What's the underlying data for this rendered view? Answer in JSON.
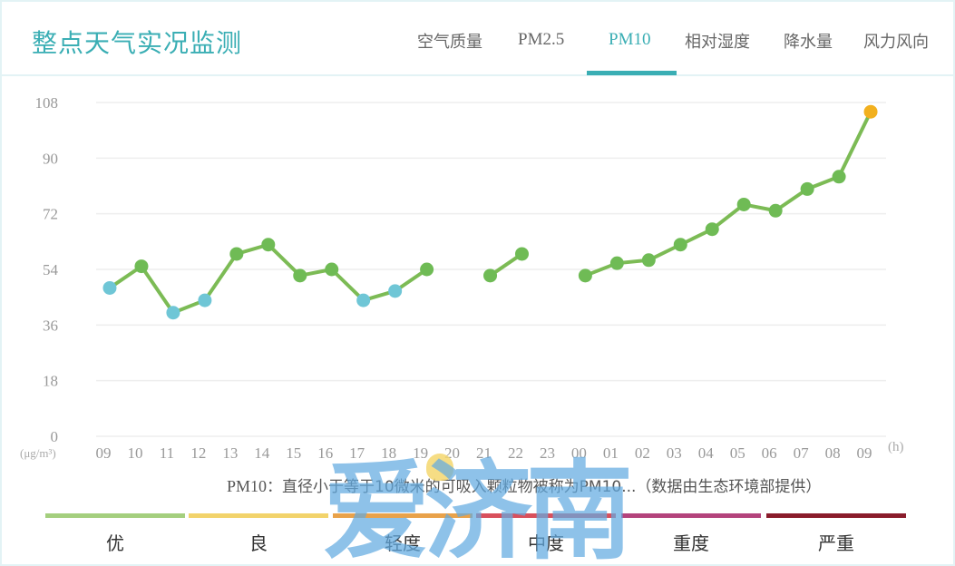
{
  "header": {
    "title": "整点天气实况监测",
    "tabs": [
      {
        "label": "空气质量",
        "active": false
      },
      {
        "label": "PM2.5",
        "active": false
      },
      {
        "label": "PM10",
        "active": true
      },
      {
        "label": "相对湿度",
        "active": false
      },
      {
        "label": "降水量",
        "active": false
      },
      {
        "label": "风力风向",
        "active": false
      }
    ]
  },
  "note": {
    "prefix": "PM10",
    "text": "：直径小于等于10微米的可吸入颗粒物被称为PM10...（数据由生态环境部提供）"
  },
  "levels": [
    {
      "label": "优",
      "color": "#a4cf7e"
    },
    {
      "label": "良",
      "color": "#f2d36b"
    },
    {
      "label": "轻度",
      "color": "#e9a24a"
    },
    {
      "label": "中度",
      "color": "#d9505c"
    },
    {
      "label": "重度",
      "color": "#b4437c"
    },
    {
      "label": "严重",
      "color": "#8a1c2b"
    }
  ],
  "watermark": "爱济南",
  "colors": {
    "accent": "#3aaeb4",
    "line": "#7cbb55",
    "point_good": "#6fc6d6",
    "point_moderate": "#6fbb55",
    "point_light": "#f2b01e",
    "grid": "#eeeeee"
  },
  "chart_data": {
    "type": "line",
    "title": "PM10",
    "xlabel": "(h)",
    "ylabel": "(μg/m³)",
    "ylim": [
      0,
      108
    ],
    "yticks": [
      0,
      18,
      36,
      54,
      72,
      90,
      108
    ],
    "grid": true,
    "categories": [
      "09",
      "10",
      "11",
      "12",
      "13",
      "14",
      "15",
      "16",
      "17",
      "18",
      "19",
      "20",
      "21",
      "22",
      "23",
      "00",
      "01",
      "02",
      "03",
      "04",
      "05",
      "06",
      "07",
      "08",
      "09"
    ],
    "series": [
      {
        "name": "PM10",
        "values": [
          48,
          55,
          40,
          44,
          59,
          62,
          52,
          54,
          44,
          47,
          54,
          null,
          52,
          59,
          null,
          52,
          56,
          57,
          62,
          67,
          75,
          73,
          80,
          84,
          105
        ],
        "point_levels": [
          "优",
          "良",
          "优",
          "优",
          "良",
          "良",
          "良",
          "良",
          "优",
          "优",
          "良",
          null,
          "良",
          "良",
          null,
          "良",
          "良",
          "良",
          "良",
          "良",
          "良",
          "良",
          "良",
          "良",
          "轻度"
        ]
      }
    ]
  }
}
